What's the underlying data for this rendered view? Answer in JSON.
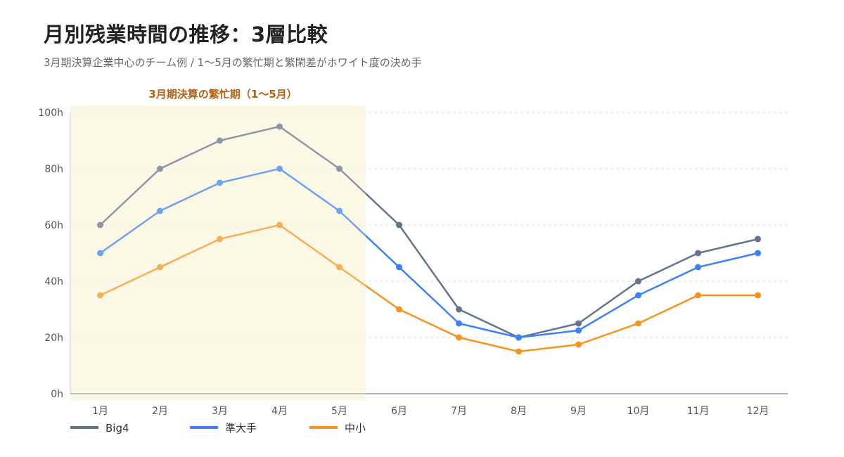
{
  "title": "月別残業時間の推移：3層比較",
  "subtitle": "3月期決算企業中心のチーム例 / 1〜5月の繁忙期と繁閑差がホワイト度の決め手",
  "chart_data": {
    "type": "line",
    "categories": [
      "1月",
      "2月",
      "3月",
      "4月",
      "5月",
      "6月",
      "7月",
      "8月",
      "9月",
      "10月",
      "11月",
      "12月"
    ],
    "y_tick_labels": [
      "0h",
      "20h",
      "40h",
      "60h",
      "80h",
      "100h"
    ],
    "ylim": [
      0,
      100
    ],
    "grid": true,
    "legend_position": "bottom-left",
    "highlight_band": {
      "label": "3月期決算の繁忙期（1〜5月）",
      "from": "1月",
      "to": "5月",
      "color": "#fdf9e6",
      "label_color": "#b8600f"
    },
    "series": [
      {
        "name": "Big4",
        "color": "#64748b",
        "values": [
          60,
          80,
          90,
          95,
          80,
          60,
          30,
          20,
          25,
          40,
          50,
          55
        ]
      },
      {
        "name": "準大手",
        "color": "#3b82f6",
        "values": [
          50,
          65,
          75,
          80,
          65,
          45,
          25,
          20,
          22.5,
          35,
          45,
          50
        ]
      },
      {
        "name": "中小",
        "color": "#f7931e",
        "values": [
          35,
          45,
          55,
          60,
          45,
          30,
          20,
          15,
          17.5,
          25,
          35,
          35
        ]
      }
    ]
  }
}
